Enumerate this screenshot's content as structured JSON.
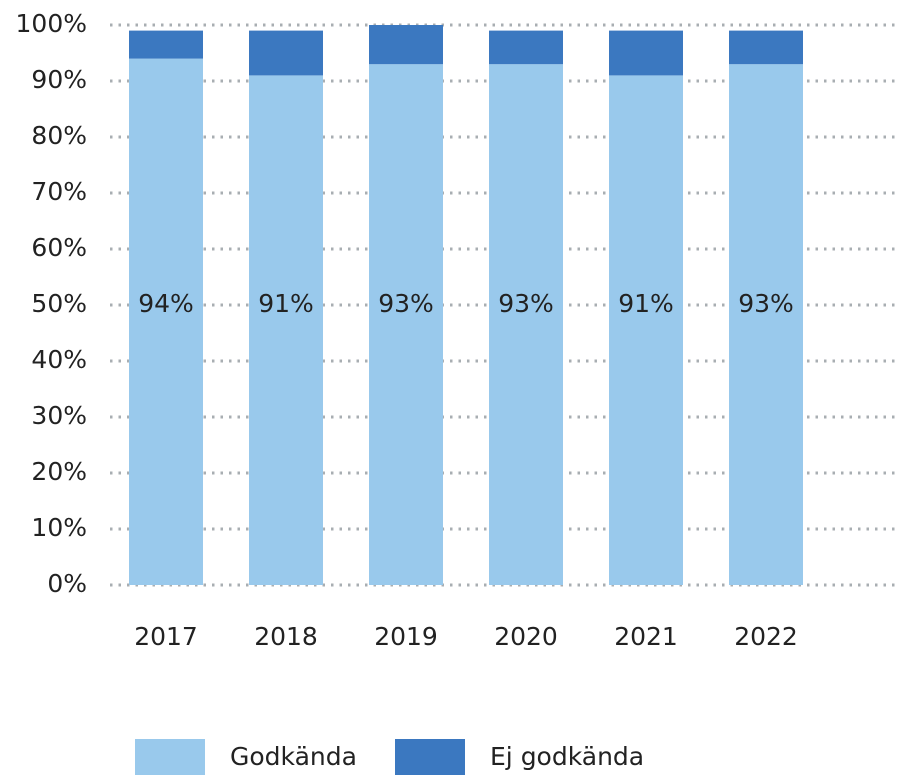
{
  "chart_data": {
    "type": "stacked_bar",
    "categories": [
      "2017",
      "2018",
      "2019",
      "2020",
      "2021",
      "2022"
    ],
    "series": [
      {
        "name": "Godkända",
        "color": "#99c9ec",
        "values": [
          94,
          91,
          93,
          93,
          91,
          93
        ],
        "value_labels": [
          "94%",
          "91%",
          "93%",
          "93%",
          "91%",
          "93%"
        ]
      },
      {
        "name": "Ej godkända",
        "color": "#3b78c0",
        "values": [
          5,
          8,
          7,
          6,
          8,
          6
        ]
      }
    ],
    "ylim": [
      0,
      100
    ],
    "yticks": [
      {
        "value": 0,
        "label": "0%"
      },
      {
        "value": 10,
        "label": "10%"
      },
      {
        "value": 20,
        "label": "20%"
      },
      {
        "value": 30,
        "label": "30%"
      },
      {
        "value": 40,
        "label": "40%"
      },
      {
        "value": 50,
        "label": "50%"
      },
      {
        "value": 60,
        "label": "60%"
      },
      {
        "value": 70,
        "label": "70%"
      },
      {
        "value": 80,
        "label": "80%"
      },
      {
        "value": 90,
        "label": "90%"
      },
      {
        "value": 100,
        "label": "100%"
      }
    ],
    "grid": true,
    "legend": "bottom"
  }
}
